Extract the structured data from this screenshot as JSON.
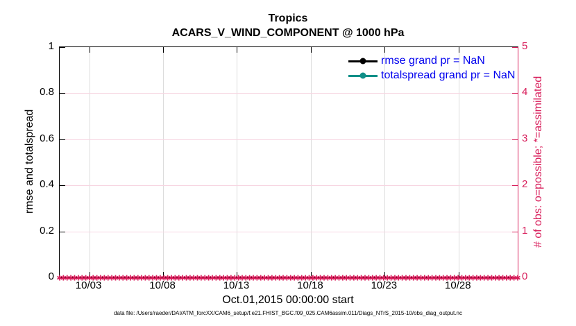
{
  "figure": {
    "caption": "data file: /Users/raeder/DAI/ATM_forcXX/CAM6_setup/f.e21.FHIST_BGC.f09_025.CAM6assim.011/Diags_NTrS_2015-10/obs_diag_output.nc"
  },
  "chart_data": {
    "type": "line",
    "title": "Tropics",
    "subtitle": "ACARS_V_WIND_COMPONENT @ 1000 hPa",
    "xlabel": "Oct.01,2015 00:00:00 start",
    "x_axis": {
      "tick_labels": [
        "10/03",
        "10/08",
        "10/13",
        "10/18",
        "10/23",
        "10/28"
      ],
      "tick_day_offsets": [
        2,
        7,
        12,
        17,
        22,
        27
      ],
      "range_days": [
        0,
        31
      ]
    },
    "left_axis": {
      "label": "rmse and totalspread",
      "tick_labels": [
        "0",
        "0.2",
        "0.4",
        "0.6",
        "0.8",
        "1"
      ],
      "tick_values": [
        0,
        0.2,
        0.4,
        0.6,
        0.8,
        1
      ],
      "lim": [
        0,
        1
      ],
      "color": "#000000"
    },
    "right_axis": {
      "label": "# of obs: o=possible; *=assimilated",
      "tick_labels": [
        "0",
        "1",
        "2",
        "3",
        "4",
        "5"
      ],
      "tick_values": [
        0,
        1,
        2,
        3,
        4,
        5
      ],
      "lim": [
        0,
        5
      ],
      "color": "#D81E5B"
    },
    "grid": {
      "show": true,
      "h_color": "#F7D6E2",
      "v_color": "#DCDCDC"
    },
    "legend": {
      "position": "top-right-inside",
      "text_color": "#0000EE",
      "entries": [
        {
          "label": "rmse grand pr = NaN",
          "color": "#000000",
          "marker": "circle"
        },
        {
          "label": "totalspread grand pr = NaN",
          "color": "#0F8F88",
          "marker": "circle"
        }
      ]
    },
    "series": [
      {
        "name": "rmse",
        "color": "#000000",
        "values": []
      },
      {
        "name": "totalspread",
        "color": "#0F8F88",
        "values": []
      },
      {
        "name": "assimilated-obs-count",
        "color": "#D81E5B",
        "marker": "*",
        "marker_glyph": "✱",
        "y_value": 0,
        "marker_count": 124
      }
    ]
  }
}
